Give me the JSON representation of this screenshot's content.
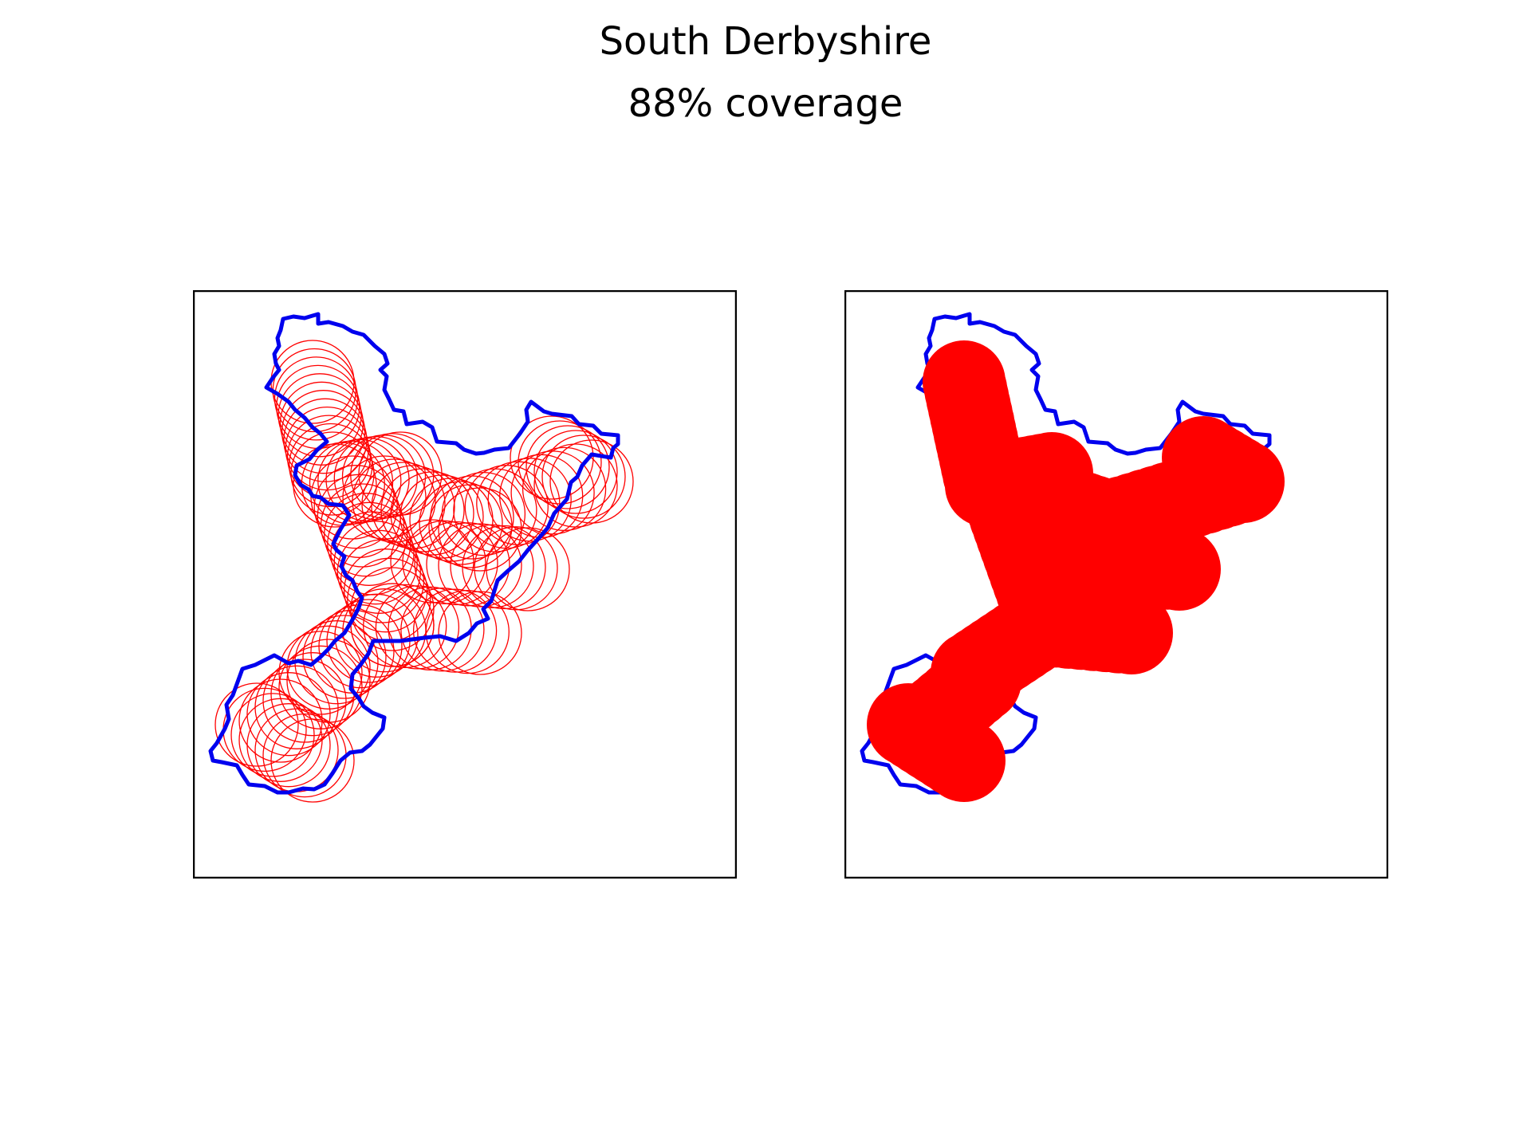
{
  "figure": {
    "title": "South Derbyshire",
    "subtitle": "88% coverage"
  },
  "colors": {
    "boundary": "#0000ee",
    "coverage": "#ff0000",
    "frame": "#000000",
    "background": "#ffffff"
  },
  "panels": [
    {
      "id": "panel-outlines",
      "style": "circle outlines"
    },
    {
      "id": "panel-filled",
      "style": "filled circles"
    }
  ]
}
